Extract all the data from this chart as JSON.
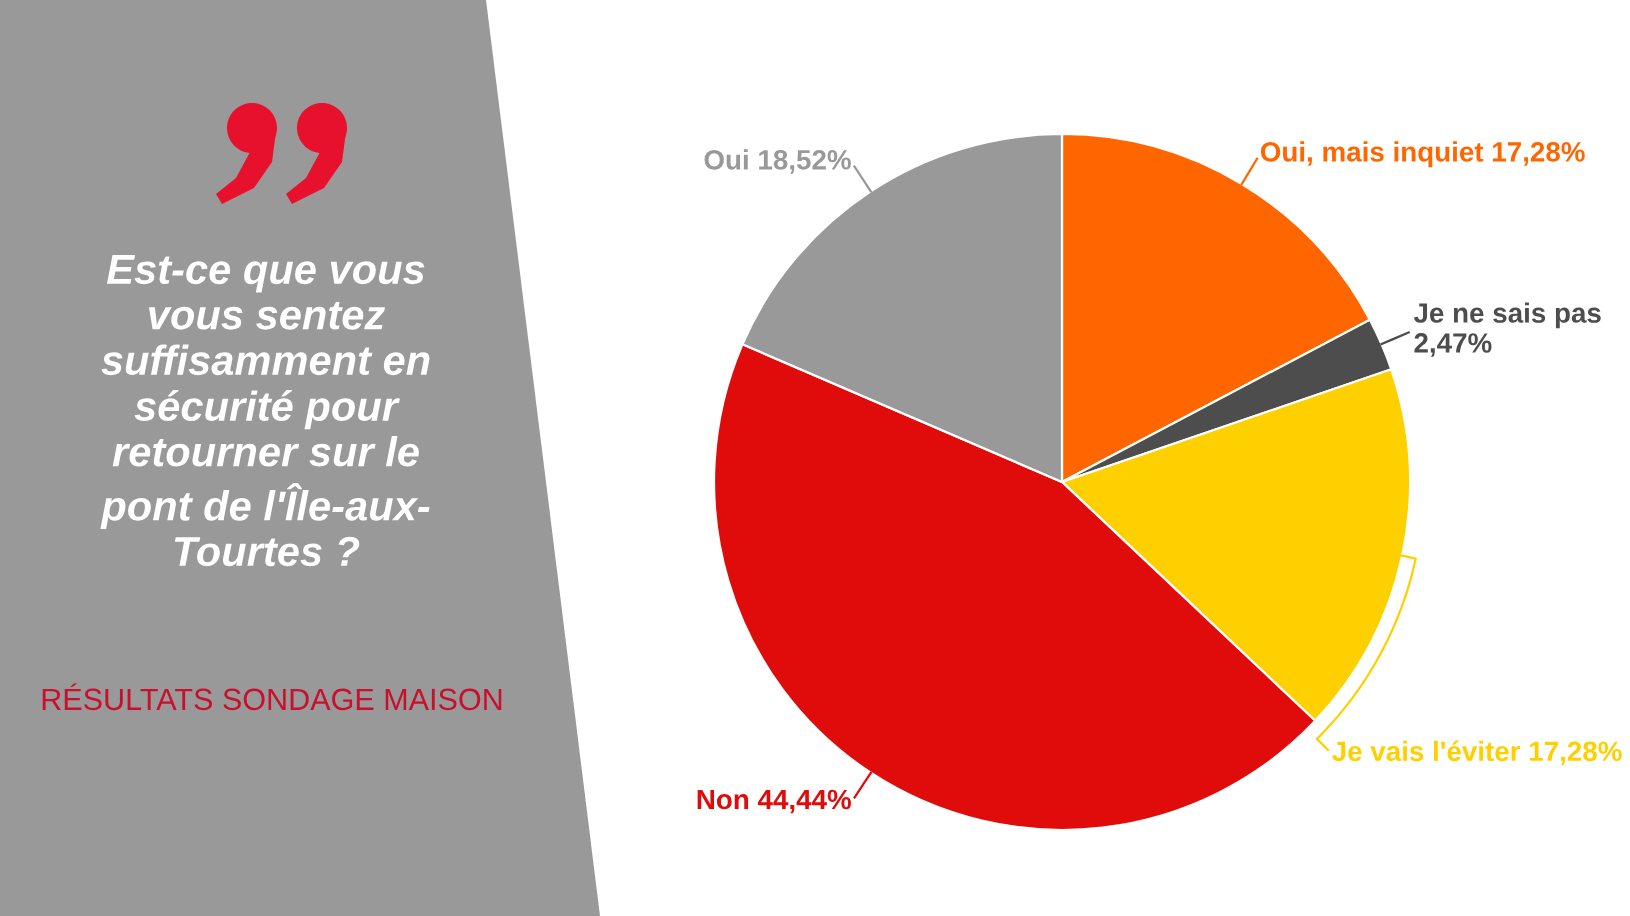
{
  "chart_data": {
    "type": "pie",
    "title": "Est-ce que vous\nvous sentez\nsuffisamment en\nsécurité pour\nretourner sur le\npont de l'Île-aux-\nTourtes ?",
    "subtitle": "RÉSULTATS SONDAGE MAISON",
    "categories": [
      "Oui, mais inquiet",
      "Je ne sais pas",
      "Je vais l'éviter",
      "Non",
      "Oui"
    ],
    "values": [
      17.28,
      2.47,
      17.28,
      44.44,
      18.52
    ],
    "colors": [
      "#ff6600",
      "#4d4d4d",
      "#ffd000",
      "#e00b0b",
      "#999999"
    ],
    "value_labels": [
      "17,28%",
      "2,47%",
      "17,28%",
      "44,44%",
      "18,52%"
    ]
  }
}
